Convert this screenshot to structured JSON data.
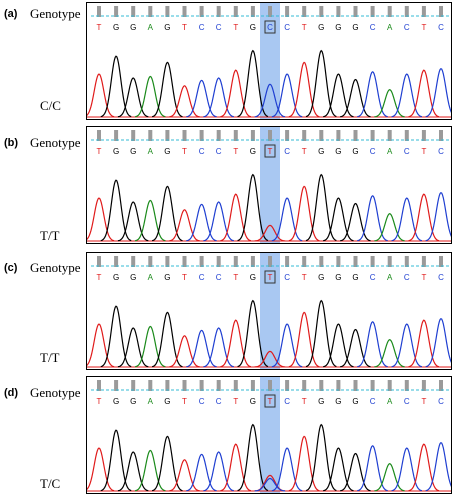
{
  "panels": [
    {
      "label": "(a)",
      "title": "Genotype",
      "genotype": "C/C",
      "highlight_base": "C",
      "variant": "cc"
    },
    {
      "label": "(b)",
      "title": "Genotype",
      "genotype": "T/T",
      "highlight_base": "T",
      "variant": "tt"
    },
    {
      "label": "(c)",
      "title": "Genotype",
      "genotype": "T/T",
      "highlight_base": "T",
      "variant": "tt"
    },
    {
      "label": "(d)",
      "title": "Genotype",
      "genotype": "T/C",
      "highlight_base": "T",
      "variant": "tc"
    }
  ],
  "sequence": [
    "T",
    "G",
    "G",
    "A",
    "G",
    "T",
    "C",
    "C",
    "T",
    "G",
    "*",
    "C",
    "T",
    "G",
    "G",
    "G",
    "C",
    "A",
    "C",
    "T",
    "C"
  ],
  "highlight_index": 10,
  "colors": {
    "A": "#1a8a1a",
    "C": "#1f3fd1",
    "G": "#000000",
    "T": "#e01b1b",
    "highlight": "#a9c8f2",
    "dashed": "#33bbd6",
    "ticks": "#9a9a9a"
  }
}
